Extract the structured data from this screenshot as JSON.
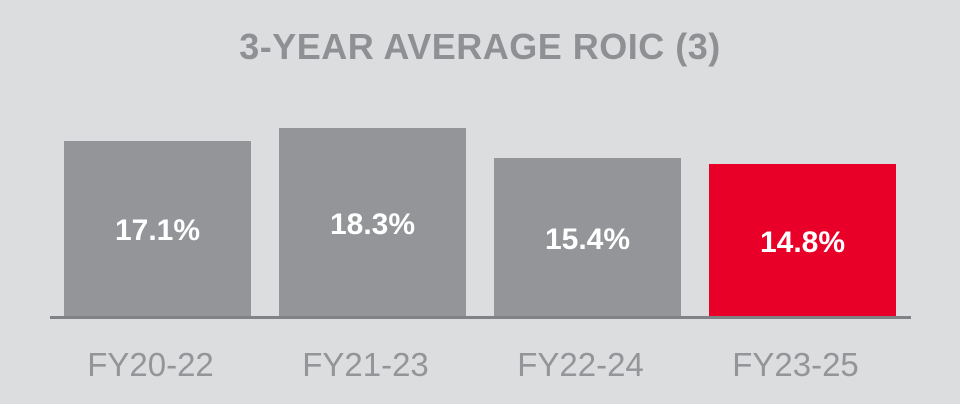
{
  "title": "3-YEAR AVERAGE ROIC (3)",
  "chart_data": {
    "type": "bar",
    "title": "3-YEAR AVERAGE ROIC (3)",
    "categories": [
      "FY20-22",
      "FY21-23",
      "FY22-24",
      "FY23-25"
    ],
    "values": [
      17.1,
      18.3,
      15.4,
      14.8
    ],
    "value_labels": [
      "17.1%",
      "18.3%",
      "15.4%",
      "14.8%"
    ],
    "bar_colors": [
      "#939598",
      "#939598",
      "#939598",
      "#E80029"
    ],
    "highlighted_category": "FY23-25",
    "xlabel": "",
    "ylabel": "",
    "ylim": [
      0,
      20
    ],
    "grid": false,
    "legend": "none",
    "value_label_position": "inside-center",
    "value_label_color": "#FFFFFF"
  },
  "colors": {
    "background": "#DCDDDE",
    "bar_default": "#939598",
    "bar_highlight": "#E80029",
    "axis_line": "#808285",
    "title_text": "#8E9093",
    "category_text": "#939598",
    "value_text": "#FFFFFF"
  }
}
